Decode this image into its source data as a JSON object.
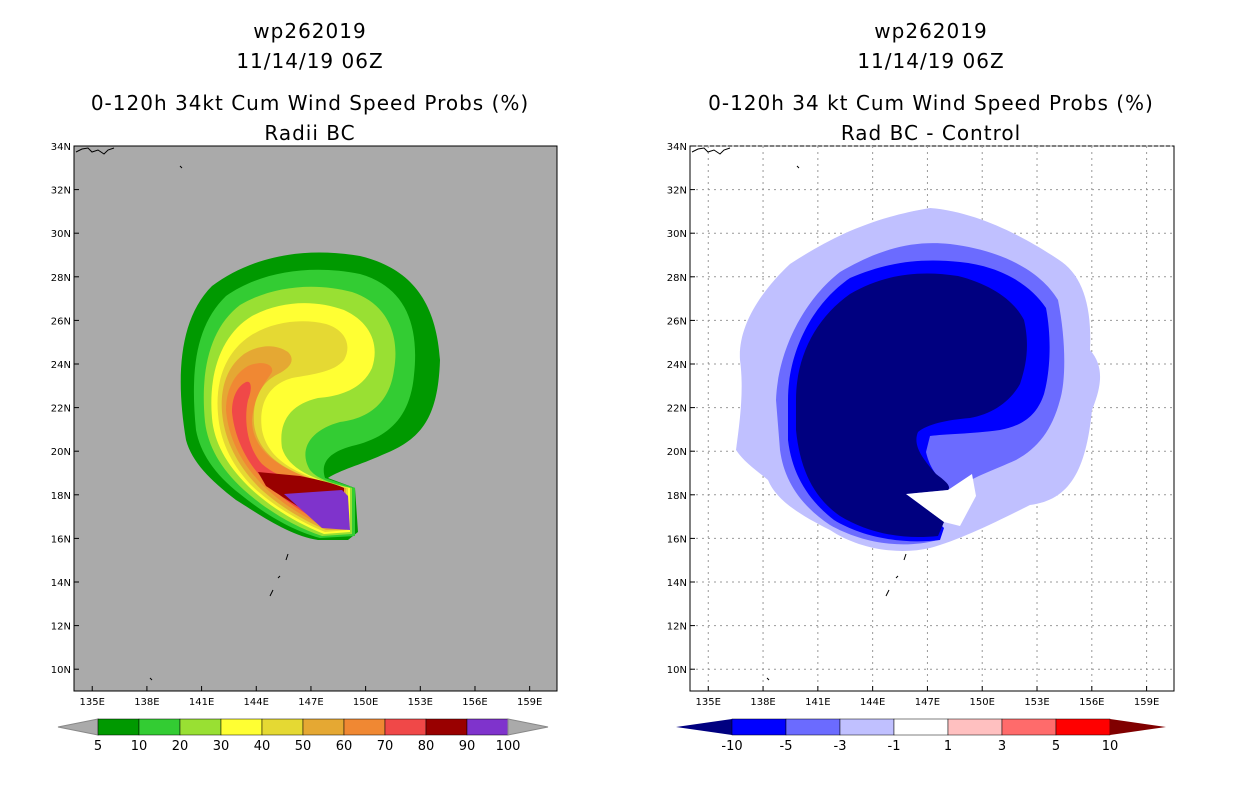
{
  "left": {
    "title_line1": "wp262019",
    "title_line2": "11/14/19 06Z",
    "title_line3": "0-120h 34kt Cum Wind Speed Probs (%)",
    "title_line4": "Radii BC",
    "background_color": "#aaaaaa",
    "colorbar_labels": [
      "5",
      "10",
      "20",
      "30",
      "40",
      "50",
      "60",
      "70",
      "80",
      "90",
      "100"
    ],
    "colorbar_colors": [
      "#009900",
      "#33cc33",
      "#99e033",
      "#ffff33",
      "#e5d933",
      "#e5a833",
      "#f08833",
      "#f04848",
      "#990000",
      "#7f33cc"
    ]
  },
  "right": {
    "title_line1": "wp262019",
    "title_line2": "11/14/19 06Z",
    "title_line3": "0-120h 34 kt Cum Wind Speed Probs (%)",
    "title_line4": "Rad BC - Control",
    "background_color": "#ffffff",
    "colorbar_labels": [
      "-10",
      "-5",
      "-3",
      "-1",
      "1",
      "3",
      "5",
      "10"
    ],
    "colorbar_colors": [
      "#000080",
      "#0000ff",
      "#6b6bff",
      "#c0c0ff",
      "#ffffff",
      "#ffc0c0",
      "#ff6b6b",
      "#ff0000",
      "#800000"
    ]
  },
  "chart_data": [
    {
      "type": "heatmap",
      "title": "0-120h 34kt Cum Wind Speed Probs (%)",
      "subtitle": "Radii BC",
      "x_tick_labels": [
        "135E",
        "138E",
        "141E",
        "144E",
        "147E",
        "150E",
        "153E",
        "156E",
        "159E"
      ],
      "y_tick_labels": [
        "34N",
        "32N",
        "30N",
        "28N",
        "26N",
        "24N",
        "22N",
        "20N",
        "18N",
        "16N",
        "14N",
        "12N",
        "10N"
      ],
      "xlim": [
        134,
        160.5
      ],
      "ylim": [
        9,
        34
      ],
      "contour_levels": [
        5,
        10,
        20,
        30,
        40,
        50,
        60,
        70,
        80,
        90,
        100
      ],
      "grid": false
    },
    {
      "type": "heatmap",
      "title": "0-120h 34 kt Cum Wind Speed Probs (%)",
      "subtitle": "Rad BC - Control",
      "x_tick_labels": [
        "135E",
        "138E",
        "141E",
        "144E",
        "147E",
        "150E",
        "153E",
        "156E",
        "159E"
      ],
      "y_tick_labels": [
        "34N",
        "32N",
        "30N",
        "28N",
        "26N",
        "24N",
        "22N",
        "20N",
        "18N",
        "16N",
        "14N",
        "12N",
        "10N"
      ],
      "xlim": [
        134,
        160.5
      ],
      "ylim": [
        9,
        34
      ],
      "contour_levels": [
        -10,
        -5,
        -3,
        -1,
        1,
        3,
        5,
        10
      ],
      "grid": true
    }
  ]
}
